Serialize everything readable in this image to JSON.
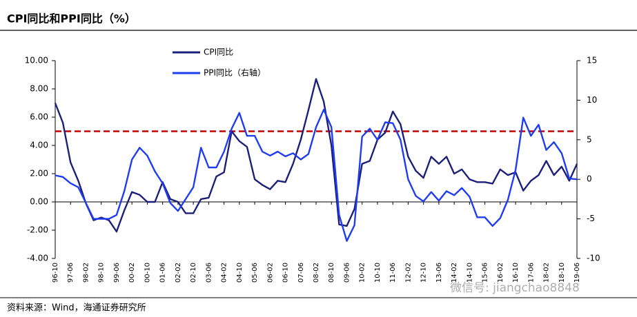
{
  "chart_data": {
    "type": "line",
    "title": "CPI同比和PPI同比（%）",
    "source": "资料来源：Wind，海通证券研究所",
    "watermark": "微信号: jiangchao8848",
    "categories": [
      "96-10",
      null,
      "97-06",
      null,
      "98-02",
      null,
      "98-10",
      null,
      "99-06",
      null,
      "00-02",
      null,
      "00-10",
      null,
      "01-06",
      null,
      "02-02",
      null,
      "02-10",
      null,
      "03-06",
      null,
      "04-02",
      null,
      "04-10",
      null,
      "05-06",
      null,
      "06-02",
      null,
      "06-10",
      null,
      "07-06",
      null,
      "08-02",
      null,
      "08-10",
      null,
      "09-06",
      null,
      "10-02",
      null,
      "10-10",
      null,
      "11-06",
      null,
      "12-02",
      null,
      "12-10",
      null,
      "13-06",
      null,
      "14-02",
      null,
      "14-10",
      null,
      "15-06",
      null,
      "16-02",
      null,
      "16-10",
      null,
      "17-06",
      null,
      "18-02",
      null,
      "18-10",
      null,
      "19-06"
    ],
    "series": [
      {
        "name": "CPI同比",
        "color": "#1b1f7a",
        "axis": "y",
        "values": [
          7.0,
          5.6,
          2.8,
          1.5,
          -0.1,
          -1.3,
          -1.1,
          -1.3,
          -2.1,
          -0.6,
          0.7,
          0.5,
          0.0,
          0.0,
          1.4,
          0.2,
          0.0,
          -0.8,
          -0.8,
          0.2,
          0.3,
          1.8,
          2.1,
          5.0,
          4.3,
          3.9,
          1.6,
          1.2,
          0.9,
          1.5,
          1.4,
          2.7,
          4.4,
          6.5,
          8.7,
          7.1,
          4.0,
          -1.6,
          -1.7,
          -0.5,
          2.7,
          2.9,
          4.4,
          4.9,
          6.4,
          5.5,
          3.2,
          2.2,
          1.7,
          3.2,
          2.7,
          3.2,
          2.0,
          2.3,
          1.6,
          1.4,
          1.4,
          1.3,
          2.3,
          1.9,
          2.1,
          0.8,
          1.5,
          1.9,
          2.9,
          1.9,
          2.5,
          1.5,
          2.7
        ]
      },
      {
        "name": "PPI同比（右轴）",
        "color": "#1f3cf0",
        "axis": "y2",
        "values": [
          0.5,
          0.3,
          -0.5,
          -1,
          -3,
          -5,
          -5,
          -5,
          -4.5,
          -1.5,
          2.5,
          4,
          3,
          1,
          -0.5,
          -3,
          -4,
          -2.5,
          -1,
          4,
          1.5,
          1.5,
          3.5,
          6.4,
          8.4,
          5.5,
          5.5,
          3.5,
          3,
          3.5,
          2.9,
          3.3,
          2.5,
          3.2,
          6.6,
          8.8,
          6.6,
          -4.5,
          -7.8,
          -5.8,
          5.4,
          6.4,
          5,
          7.2,
          7.1,
          5,
          0,
          -2.1,
          -2.8,
          -1.6,
          -2.7,
          -1.5,
          -2,
          -1.1,
          -2.2,
          -4.8,
          -4.8,
          -5.9,
          -4.9,
          -2.6,
          1.2,
          7.8,
          5.5,
          6.9,
          3.7,
          4.7,
          3.3,
          0.1,
          0.0
        ]
      }
    ],
    "reference_line": {
      "value": 5,
      "color": "#c00000",
      "axis": "y"
    },
    "ylim": [
      -4,
      10
    ],
    "yticks": [
      {
        "value": -4,
        "label": "-4.00"
      },
      {
        "value": -2,
        "label": "-2.00"
      },
      {
        "value": 0,
        "label": "0.00"
      },
      {
        "value": 2,
        "label": "2.00"
      },
      {
        "value": 4,
        "label": "4.00"
      },
      {
        "value": 6,
        "label": "6.00"
      },
      {
        "value": 8,
        "label": "8.00"
      },
      {
        "value": 10,
        "label": "10.00"
      }
    ],
    "y2lim": [
      -10,
      15
    ],
    "y2ticks": [
      -10,
      -5,
      0,
      5,
      10,
      15
    ]
  }
}
